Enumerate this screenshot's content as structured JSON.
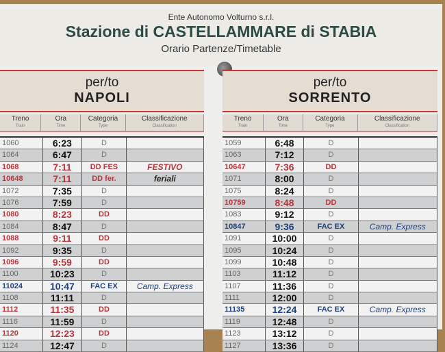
{
  "header": {
    "organization": "Ente Autonomo Volturno s.r.l.",
    "station": "Stazione di CASTELLAMMARE di STABIA",
    "subtitle": "Orario Partenze/Timetable"
  },
  "columns": [
    {
      "it": "Treno",
      "en": "Train"
    },
    {
      "it": "Ora",
      "en": "Time"
    },
    {
      "it": "Categoria",
      "en": "Type"
    },
    {
      "it": "Classificazione",
      "en": "Classification"
    }
  ],
  "colors": {
    "red": "#b7343b",
    "blue": "#1f3f7a"
  },
  "sections": [
    {
      "per": "per/to",
      "destination": "NAPOLI",
      "rows": [
        [
          "1060",
          "6:23",
          "D",
          "",
          ""
        ],
        [
          "1064",
          "6:47",
          "D",
          "",
          ""
        ],
        [
          "1068",
          "7:11",
          "DD FES",
          "FESTIVO",
          "red"
        ],
        [
          "10648",
          "7:11",
          "DD fer.",
          "feriali",
          "red"
        ],
        [
          "1072",
          "7:35",
          "D",
          "",
          ""
        ],
        [
          "1076",
          "7:59",
          "D",
          "",
          ""
        ],
        [
          "1080",
          "8:23",
          "DD",
          "",
          "red"
        ],
        [
          "1084",
          "8:47",
          "D",
          "",
          ""
        ],
        [
          "1088",
          "9:11",
          "DD",
          "",
          "red"
        ],
        [
          "1092",
          "9:35",
          "D",
          "",
          ""
        ],
        [
          "1096",
          "9:59",
          "DD",
          "",
          "red"
        ],
        [
          "1100",
          "10:23",
          "D",
          "",
          ""
        ],
        [
          "11024",
          "10:47",
          "FAC EX",
          "Camp. Express",
          "blue"
        ],
        [
          "1108",
          "11:11",
          "D",
          "",
          ""
        ],
        [
          "1112",
          "11:35",
          "DD",
          "",
          "red"
        ],
        [
          "1116",
          "11:59",
          "D",
          "",
          ""
        ],
        [
          "1120",
          "12:23",
          "DD",
          "",
          "red"
        ],
        [
          "1124",
          "12:47",
          "D",
          "",
          ""
        ]
      ]
    },
    {
      "per": "per/to",
      "destination": "SORRENTO",
      "rows": [
        [
          "1059",
          "6:48",
          "D",
          "",
          ""
        ],
        [
          "1063",
          "7:12",
          "D",
          "",
          ""
        ],
        [
          "10647",
          "7:36",
          "DD",
          "",
          "red"
        ],
        [
          "1071",
          "8:00",
          "D",
          "",
          ""
        ],
        [
          "1075",
          "8:24",
          "D",
          "",
          ""
        ],
        [
          "10759",
          "8:48",
          "DD",
          "",
          "red"
        ],
        [
          "1083",
          "9:12",
          "D",
          "",
          ""
        ],
        [
          "10847",
          "9:36",
          "FAC EX",
          "Camp. Express",
          "blue"
        ],
        [
          "1091",
          "10:00",
          "D",
          "",
          ""
        ],
        [
          "1095",
          "10:24",
          "D",
          "",
          ""
        ],
        [
          "1099",
          "10:48",
          "D",
          "",
          ""
        ],
        [
          "1103",
          "11:12",
          "D",
          "",
          ""
        ],
        [
          "1107",
          "11:36",
          "D",
          "",
          ""
        ],
        [
          "1111",
          "12:00",
          "D",
          "",
          ""
        ],
        [
          "11135",
          "12:24",
          "FAC EX",
          "Camp. Express",
          "blue"
        ],
        [
          "1119",
          "12:48",
          "D",
          "",
          ""
        ],
        [
          "1123",
          "13:12",
          "D",
          "",
          ""
        ],
        [
          "1127",
          "13:36",
          "D",
          "",
          ""
        ]
      ]
    }
  ]
}
